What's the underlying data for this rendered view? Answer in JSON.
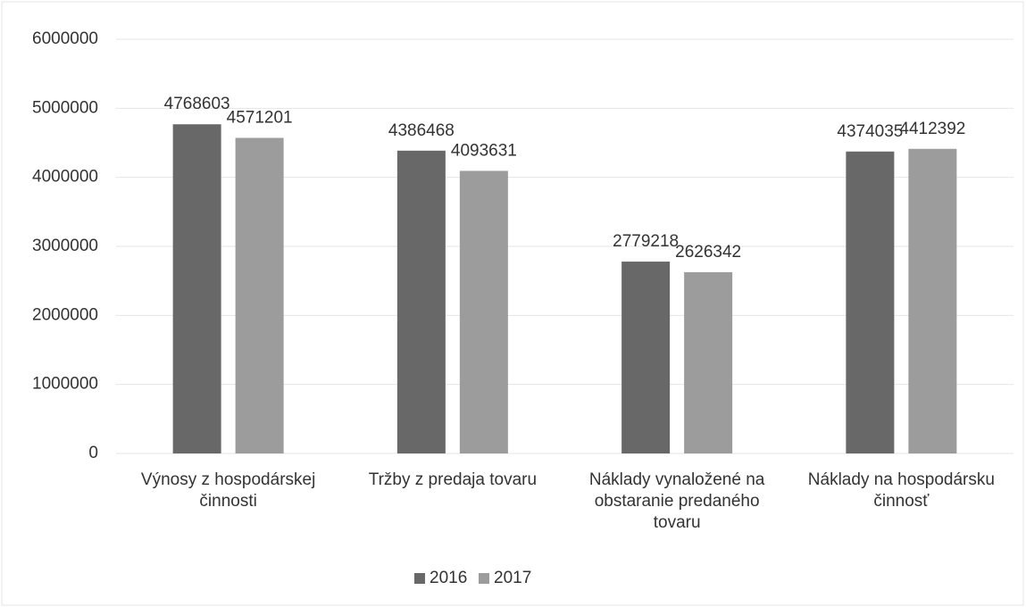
{
  "chart_data": {
    "type": "bar",
    "categories": [
      "Výnosy z hospodárskej činnosti",
      "Tržby z predaja tovaru",
      "Náklady vynaložené na obstaranie predaného tovaru",
      "Náklady na hospodársku činnosť"
    ],
    "series": [
      {
        "name": "2016",
        "color": "#686868",
        "values": [
          4768603,
          4386468,
          2779218,
          4374035
        ]
      },
      {
        "name": "2017",
        "color": "#9c9c9c",
        "values": [
          4571201,
          4093631,
          2626342,
          4412392
        ]
      }
    ],
    "ylim": [
      0,
      6000000
    ],
    "yticks": [
      0,
      1000000,
      2000000,
      3000000,
      4000000,
      5000000,
      6000000
    ],
    "grid": true,
    "legend": "bottom"
  }
}
